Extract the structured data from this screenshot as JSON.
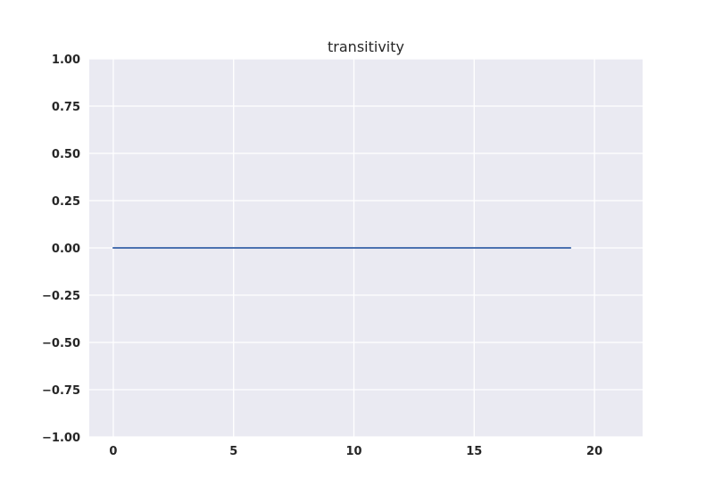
{
  "chart_data": {
    "type": "line",
    "title": "transitivity",
    "xlabel": "",
    "ylabel": "",
    "xlim": [
      -1,
      22
    ],
    "ylim": [
      -1.0,
      1.0
    ],
    "xticks": [
      0,
      5,
      10,
      15,
      20
    ],
    "xtick_labels": [
      "0",
      "5",
      "10",
      "15",
      "20"
    ],
    "yticks": [
      -1.0,
      -0.75,
      -0.5,
      -0.25,
      0.0,
      0.25,
      0.5,
      0.75,
      1.0
    ],
    "ytick_labels": [
      "−1.00",
      "−0.75",
      "−0.50",
      "−0.25",
      "0.00",
      "0.25",
      "0.50",
      "0.75",
      "1.00"
    ],
    "grid": true,
    "background_color": "#EAEAF2",
    "grid_color": "#FFFFFF",
    "series": [
      {
        "color": "#4C72B0",
        "x": [
          0,
          1,
          2,
          3,
          4,
          5,
          6,
          7,
          8,
          9,
          10,
          11,
          12,
          13,
          14,
          15,
          16,
          17,
          18,
          19
        ],
        "y": [
          0,
          0,
          0,
          0,
          0,
          0,
          0,
          0,
          0,
          0,
          0,
          0,
          0,
          0,
          0,
          0,
          0,
          0,
          0,
          0
        ]
      }
    ]
  }
}
